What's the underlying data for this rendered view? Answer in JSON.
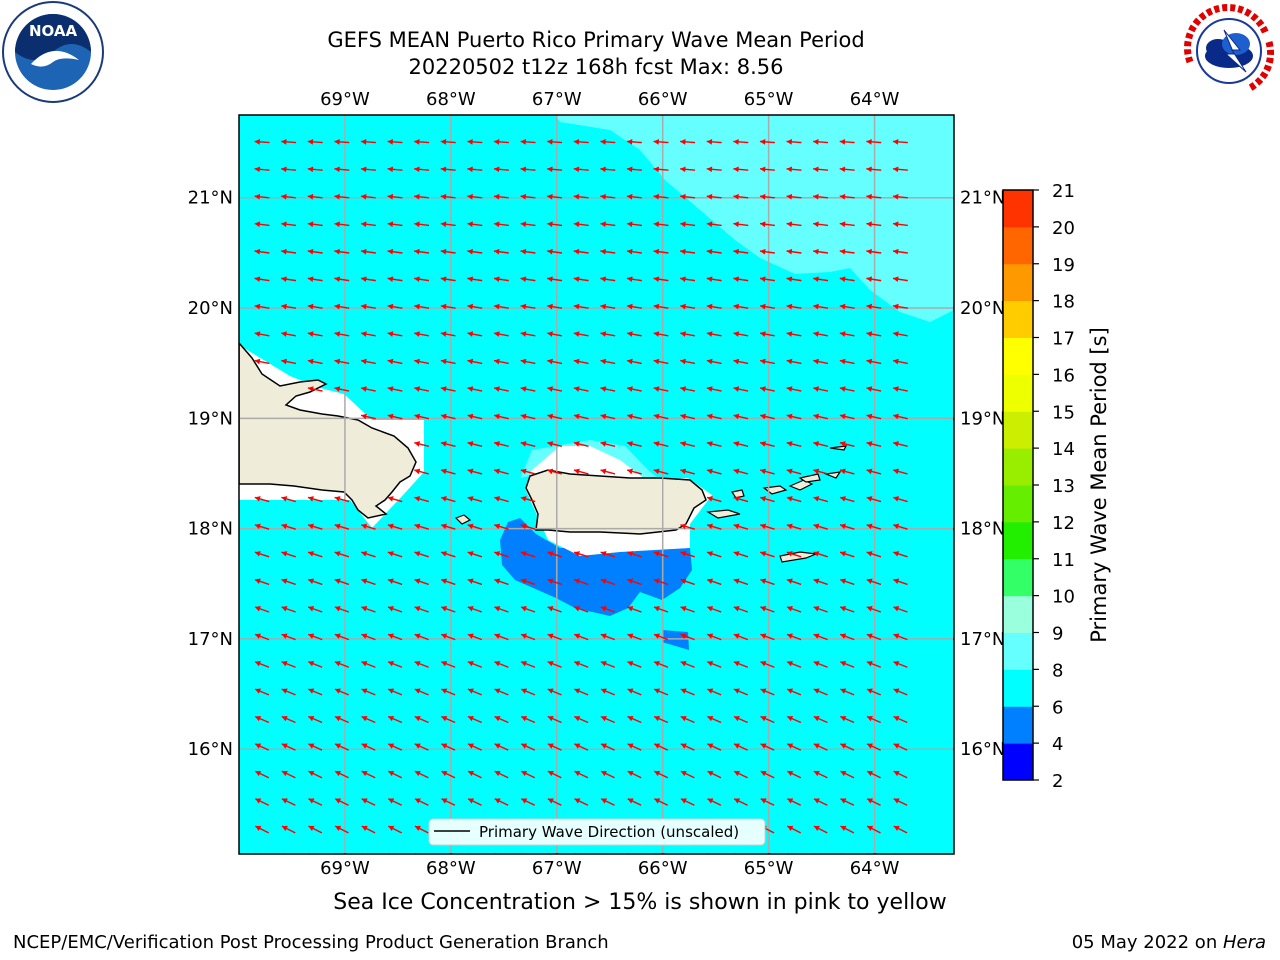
{
  "header": {
    "title_line1": "GEFS MEAN Puerto Rico Primary Wave Mean Period",
    "title_line2": "20220502 t12z 168h fcst   Max: 8.56"
  },
  "logos": {
    "left": "noaa-logo",
    "left_text": "NOAA",
    "right": "nws-logo",
    "right_text": "NATIONAL WEATHER SERVICE"
  },
  "map": {
    "lon_labels": [
      "69°W",
      "68°W",
      "67°W",
      "66°W",
      "65°W",
      "64°W"
    ],
    "lat_labels": [
      "21°N",
      "20°N",
      "19°N",
      "18°N",
      "17°N",
      "16°N"
    ],
    "lon_values": [
      -69,
      -68,
      -67,
      -66,
      -65,
      -64
    ],
    "lat_values": [
      21,
      20,
      19,
      18,
      17,
      16
    ],
    "extent": {
      "lon_min": -70,
      "lon_max": -63.25,
      "lat_min": 15.05,
      "lat_max": 21.75
    },
    "land_color": "#efedda",
    "sea_color": "#00ffff",
    "arrow_color": "#ff0000",
    "legend_label": "Primary Wave Direction (unscaled)"
  },
  "colorbar": {
    "label": "Primary Wave Mean Period [s]",
    "ticks": [
      "2",
      "4",
      "6",
      "8",
      "9",
      "10",
      "11",
      "12",
      "13",
      "14",
      "15",
      "16",
      "17",
      "18",
      "19",
      "20",
      "21"
    ],
    "colors": [
      "#0000ff",
      "#0080ff",
      "#00ffff",
      "#66ffff",
      "#99ffdd",
      "#33ff66",
      "#22ee00",
      "#66ee00",
      "#99ee00",
      "#ccee00",
      "#eeff00",
      "#ffff00",
      "#ffcc00",
      "#ff9900",
      "#ff6600",
      "#ff3300",
      "#ff0000"
    ]
  },
  "footer": {
    "sea_ice_note": "Sea Ice Concentration > 15% is shown in pink to yellow",
    "left": "NCEP/EMC/Verification Post Processing Product Generation Branch",
    "date": "05 May 2022 on ",
    "host": "Hera"
  }
}
